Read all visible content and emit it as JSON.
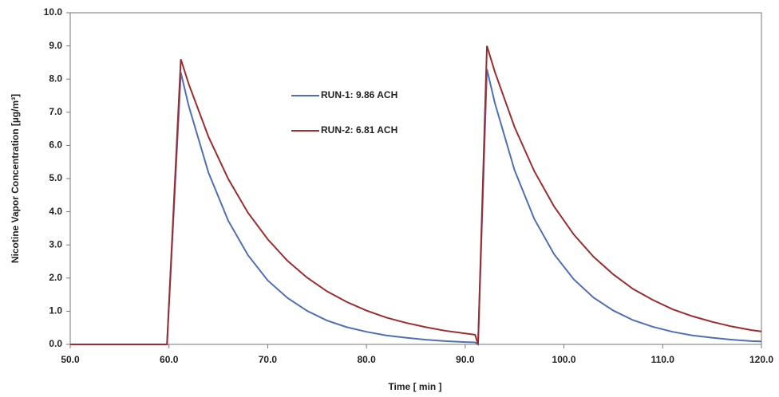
{
  "chart_data": {
    "type": "line",
    "xlabel": "Time [ min ]",
    "ylabel": "Nicotine Vapor Concentration [µg/m³]",
    "x": [
      50,
      59.8,
      61.2,
      62,
      64,
      66,
      68,
      70,
      72,
      74,
      76,
      78,
      80,
      82,
      84,
      86,
      88,
      90,
      91,
      91.3,
      92.2,
      93,
      95,
      97,
      99,
      101,
      103,
      105,
      107,
      109,
      111,
      113,
      115,
      117,
      119,
      120
    ],
    "series": [
      {
        "name": "RUN-1: 9.86 ACH",
        "color": "#4f6fb5",
        "values": [
          0,
          0,
          8.2,
          7.19,
          5.18,
          3.73,
          2.69,
          1.93,
          1.4,
          1.01,
          0.72,
          0.52,
          0.38,
          0.27,
          0.2,
          0.14,
          0.1,
          0.07,
          0.06,
          0,
          8.3,
          7.28,
          5.25,
          3.78,
          2.72,
          1.96,
          1.41,
          1.02,
          0.73,
          0.53,
          0.38,
          0.27,
          0.2,
          0.14,
          0.1,
          0.09
        ]
      },
      {
        "name": "RUN-2: 6.81 ACH",
        "color": "#9b2d30",
        "values": [
          0,
          0,
          8.6,
          7.85,
          6.26,
          4.99,
          3.97,
          3.17,
          2.52,
          2.01,
          1.6,
          1.28,
          1.02,
          0.81,
          0.65,
          0.52,
          0.41,
          0.33,
          0.29,
          0,
          9.0,
          8.22,
          6.55,
          5.22,
          4.16,
          3.31,
          2.64,
          2.11,
          1.67,
          1.34,
          1.06,
          0.85,
          0.68,
          0.54,
          0.43,
          0.39
        ]
      }
    ],
    "xlim": [
      50,
      120
    ],
    "xticks": [
      {
        "value": 50,
        "label": "50.0"
      },
      {
        "value": 60,
        "label": "60.0"
      },
      {
        "value": 70,
        "label": "70.0"
      },
      {
        "value": 80,
        "label": "80.0"
      },
      {
        "value": 90,
        "label": "90.0"
      },
      {
        "value": 100,
        "label": "100.0"
      },
      {
        "value": 110,
        "label": "110.0"
      },
      {
        "value": 120,
        "label": "120.0"
      }
    ],
    "ylim": [
      0,
      10
    ],
    "yticks": [
      {
        "value": 0,
        "label": "0.0"
      },
      {
        "value": 1,
        "label": "1.0"
      },
      {
        "value": 2,
        "label": "2.0"
      },
      {
        "value": 3,
        "label": "3.0"
      },
      {
        "value": 4,
        "label": "4.0"
      },
      {
        "value": 5,
        "label": "5.0"
      },
      {
        "value": 6,
        "label": "6.0"
      },
      {
        "value": 7,
        "label": "7.0"
      },
      {
        "value": 8,
        "label": "8.0"
      },
      {
        "value": 9,
        "label": "9.0"
      },
      {
        "value": 10,
        "label": "10.0"
      }
    ],
    "grid": false,
    "legend": "upper center"
  }
}
